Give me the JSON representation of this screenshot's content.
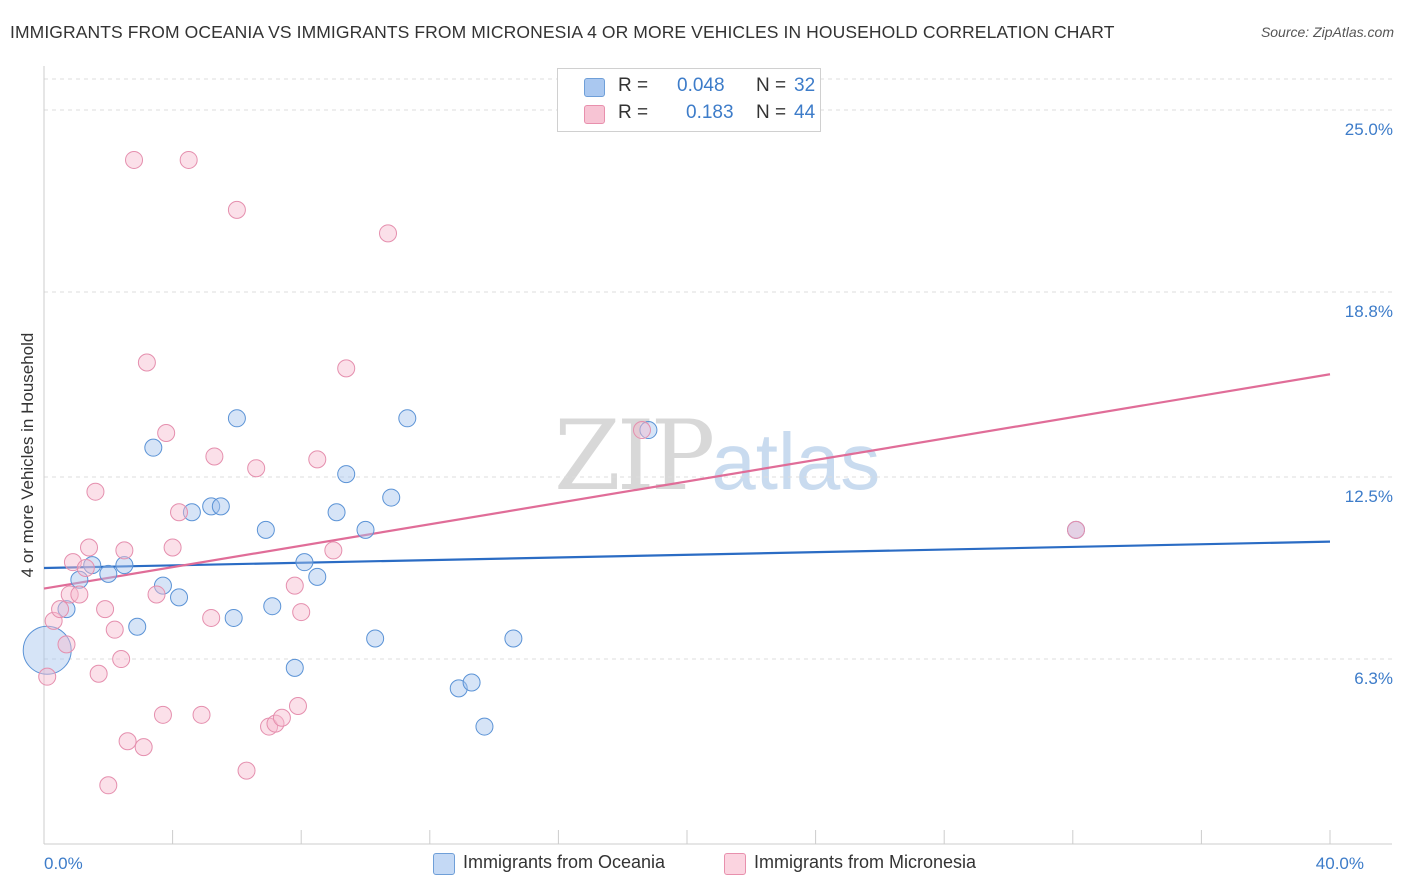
{
  "title": "IMMIGRANTS FROM OCEANIA VS IMMIGRANTS FROM MICRONESIA 4 OR MORE VEHICLES IN HOUSEHOLD CORRELATION CHART",
  "source": "Source: ZipAtlas.com",
  "watermark": {
    "zip": "ZIP",
    "atlas": "atlas"
  },
  "legend": {
    "rows": [
      {
        "r_label": "R = ",
        "r_value": "0.048",
        "n_label": "N = ",
        "n_value": "32",
        "color": "#aac8f0",
        "border": "#6f9fd8"
      },
      {
        "r_label": "R = ",
        "r_value": "0.183",
        "n_label": "N = ",
        "n_value": "44",
        "color": "#f7c4d4",
        "border": "#e890ad"
      }
    ]
  },
  "bottom_legend": [
    {
      "label": "Immigrants from Oceania",
      "color": "#c4d9f5",
      "border": "#6f9fd8"
    },
    {
      "label": "Immigrants from Micronesia",
      "color": "#fbd4e0",
      "border": "#e890ad"
    }
  ],
  "colors": {
    "oceania_fill": "rgba(164,196,238,0.45)",
    "oceania_stroke": "#5b93d6",
    "oceania_line": "#2b6cc4",
    "micronesia_fill": "rgba(246,186,206,0.45)",
    "micronesia_stroke": "#e58fae",
    "micronesia_line": "#e06d98",
    "tick_text": "#3d7cc9",
    "grid": "#dddddd"
  },
  "chart_data": {
    "type": "scatter",
    "title": "IMMIGRANTS FROM OCEANIA VS IMMIGRANTS FROM MICRONESIA 4 OR MORE VEHICLES IN HOUSEHOLD CORRELATION CHART",
    "xlabel": "",
    "ylabel": "4 or more Vehicles in Household",
    "xlim": [
      0,
      40
    ],
    "ylim": [
      0,
      26.5
    ],
    "x_tick_labels": [
      {
        "value": 0,
        "label": "0.0%"
      },
      {
        "value": 40,
        "label": "40.0%"
      }
    ],
    "y_tick_labels": [
      {
        "value": 6.3,
        "label": "6.3%"
      },
      {
        "value": 12.5,
        "label": "12.5%"
      },
      {
        "value": 18.8,
        "label": "18.8%"
      },
      {
        "value": 25.0,
        "label": "25.0%"
      }
    ],
    "grid": true,
    "legend_position": "top-center",
    "series": [
      {
        "name": "Immigrants from Oceania",
        "R": 0.048,
        "N": 32,
        "trend": {
          "x": [
            0,
            40
          ],
          "y": [
            9.4,
            10.3
          ]
        },
        "points": [
          {
            "x": 0.1,
            "y": 6.6,
            "big": true
          },
          {
            "x": 0.7,
            "y": 8.0
          },
          {
            "x": 1.1,
            "y": 9.0
          },
          {
            "x": 1.5,
            "y": 9.5
          },
          {
            "x": 2.0,
            "y": 9.2
          },
          {
            "x": 2.5,
            "y": 9.5
          },
          {
            "x": 2.9,
            "y": 7.4
          },
          {
            "x": 3.4,
            "y": 13.5
          },
          {
            "x": 3.7,
            "y": 8.8
          },
          {
            "x": 4.2,
            "y": 8.4
          },
          {
            "x": 4.6,
            "y": 11.3
          },
          {
            "x": 5.2,
            "y": 11.5
          },
          {
            "x": 5.5,
            "y": 11.5
          },
          {
            "x": 5.9,
            "y": 7.7
          },
          {
            "x": 6.0,
            "y": 14.5
          },
          {
            "x": 6.9,
            "y": 10.7
          },
          {
            "x": 7.1,
            "y": 8.1
          },
          {
            "x": 7.8,
            "y": 6.0
          },
          {
            "x": 8.1,
            "y": 9.6
          },
          {
            "x": 8.5,
            "y": 9.1
          },
          {
            "x": 9.1,
            "y": 11.3
          },
          {
            "x": 9.4,
            "y": 12.6
          },
          {
            "x": 10.0,
            "y": 10.7
          },
          {
            "x": 10.3,
            "y": 7.0
          },
          {
            "x": 10.8,
            "y": 11.8
          },
          {
            "x": 11.3,
            "y": 14.5
          },
          {
            "x": 12.9,
            "y": 5.3
          },
          {
            "x": 13.3,
            "y": 5.5
          },
          {
            "x": 13.7,
            "y": 4.0
          },
          {
            "x": 14.6,
            "y": 7.0
          },
          {
            "x": 18.8,
            "y": 14.1
          },
          {
            "x": 32.1,
            "y": 10.7
          }
        ]
      },
      {
        "name": "Immigrants from Micronesia",
        "R": 0.183,
        "N": 44,
        "trend": {
          "x": [
            0,
            40
          ],
          "y": [
            8.7,
            16.0
          ]
        },
        "points": [
          {
            "x": 0.1,
            "y": 5.7
          },
          {
            "x": 0.3,
            "y": 7.6
          },
          {
            "x": 0.5,
            "y": 8.0
          },
          {
            "x": 0.7,
            "y": 6.8
          },
          {
            "x": 0.8,
            "y": 8.5
          },
          {
            "x": 0.9,
            "y": 9.6
          },
          {
            "x": 1.1,
            "y": 8.5
          },
          {
            "x": 1.3,
            "y": 9.4
          },
          {
            "x": 1.4,
            "y": 10.1
          },
          {
            "x": 1.6,
            "y": 12.0
          },
          {
            "x": 1.7,
            "y": 5.8
          },
          {
            "x": 1.9,
            "y": 8.0
          },
          {
            "x": 2.0,
            "y": 2.0
          },
          {
            "x": 2.2,
            "y": 7.3
          },
          {
            "x": 2.4,
            "y": 6.3
          },
          {
            "x": 2.5,
            "y": 10.0
          },
          {
            "x": 2.6,
            "y": 3.5
          },
          {
            "x": 2.8,
            "y": 23.3
          },
          {
            "x": 3.1,
            "y": 3.3
          },
          {
            "x": 3.2,
            "y": 16.4
          },
          {
            "x": 3.5,
            "y": 8.5
          },
          {
            "x": 3.7,
            "y": 4.4
          },
          {
            "x": 3.8,
            "y": 14.0
          },
          {
            "x": 4.0,
            "y": 10.1
          },
          {
            "x": 4.2,
            "y": 11.3
          },
          {
            "x": 4.5,
            "y": 23.3
          },
          {
            "x": 4.9,
            "y": 4.4
          },
          {
            "x": 5.2,
            "y": 7.7
          },
          {
            "x": 5.3,
            "y": 13.2
          },
          {
            "x": 6.0,
            "y": 21.6
          },
          {
            "x": 6.3,
            "y": 2.5
          },
          {
            "x": 6.6,
            "y": 12.8
          },
          {
            "x": 7.0,
            "y": 4.0
          },
          {
            "x": 7.2,
            "y": 4.1
          },
          {
            "x": 7.4,
            "y": 4.3
          },
          {
            "x": 7.8,
            "y": 8.8
          },
          {
            "x": 7.9,
            "y": 4.7
          },
          {
            "x": 8.0,
            "y": 7.9
          },
          {
            "x": 8.5,
            "y": 13.1
          },
          {
            "x": 9.0,
            "y": 10.0
          },
          {
            "x": 9.4,
            "y": 16.2
          },
          {
            "x": 10.7,
            "y": 20.8
          },
          {
            "x": 18.6,
            "y": 14.1
          },
          {
            "x": 32.1,
            "y": 10.7
          }
        ]
      }
    ]
  }
}
